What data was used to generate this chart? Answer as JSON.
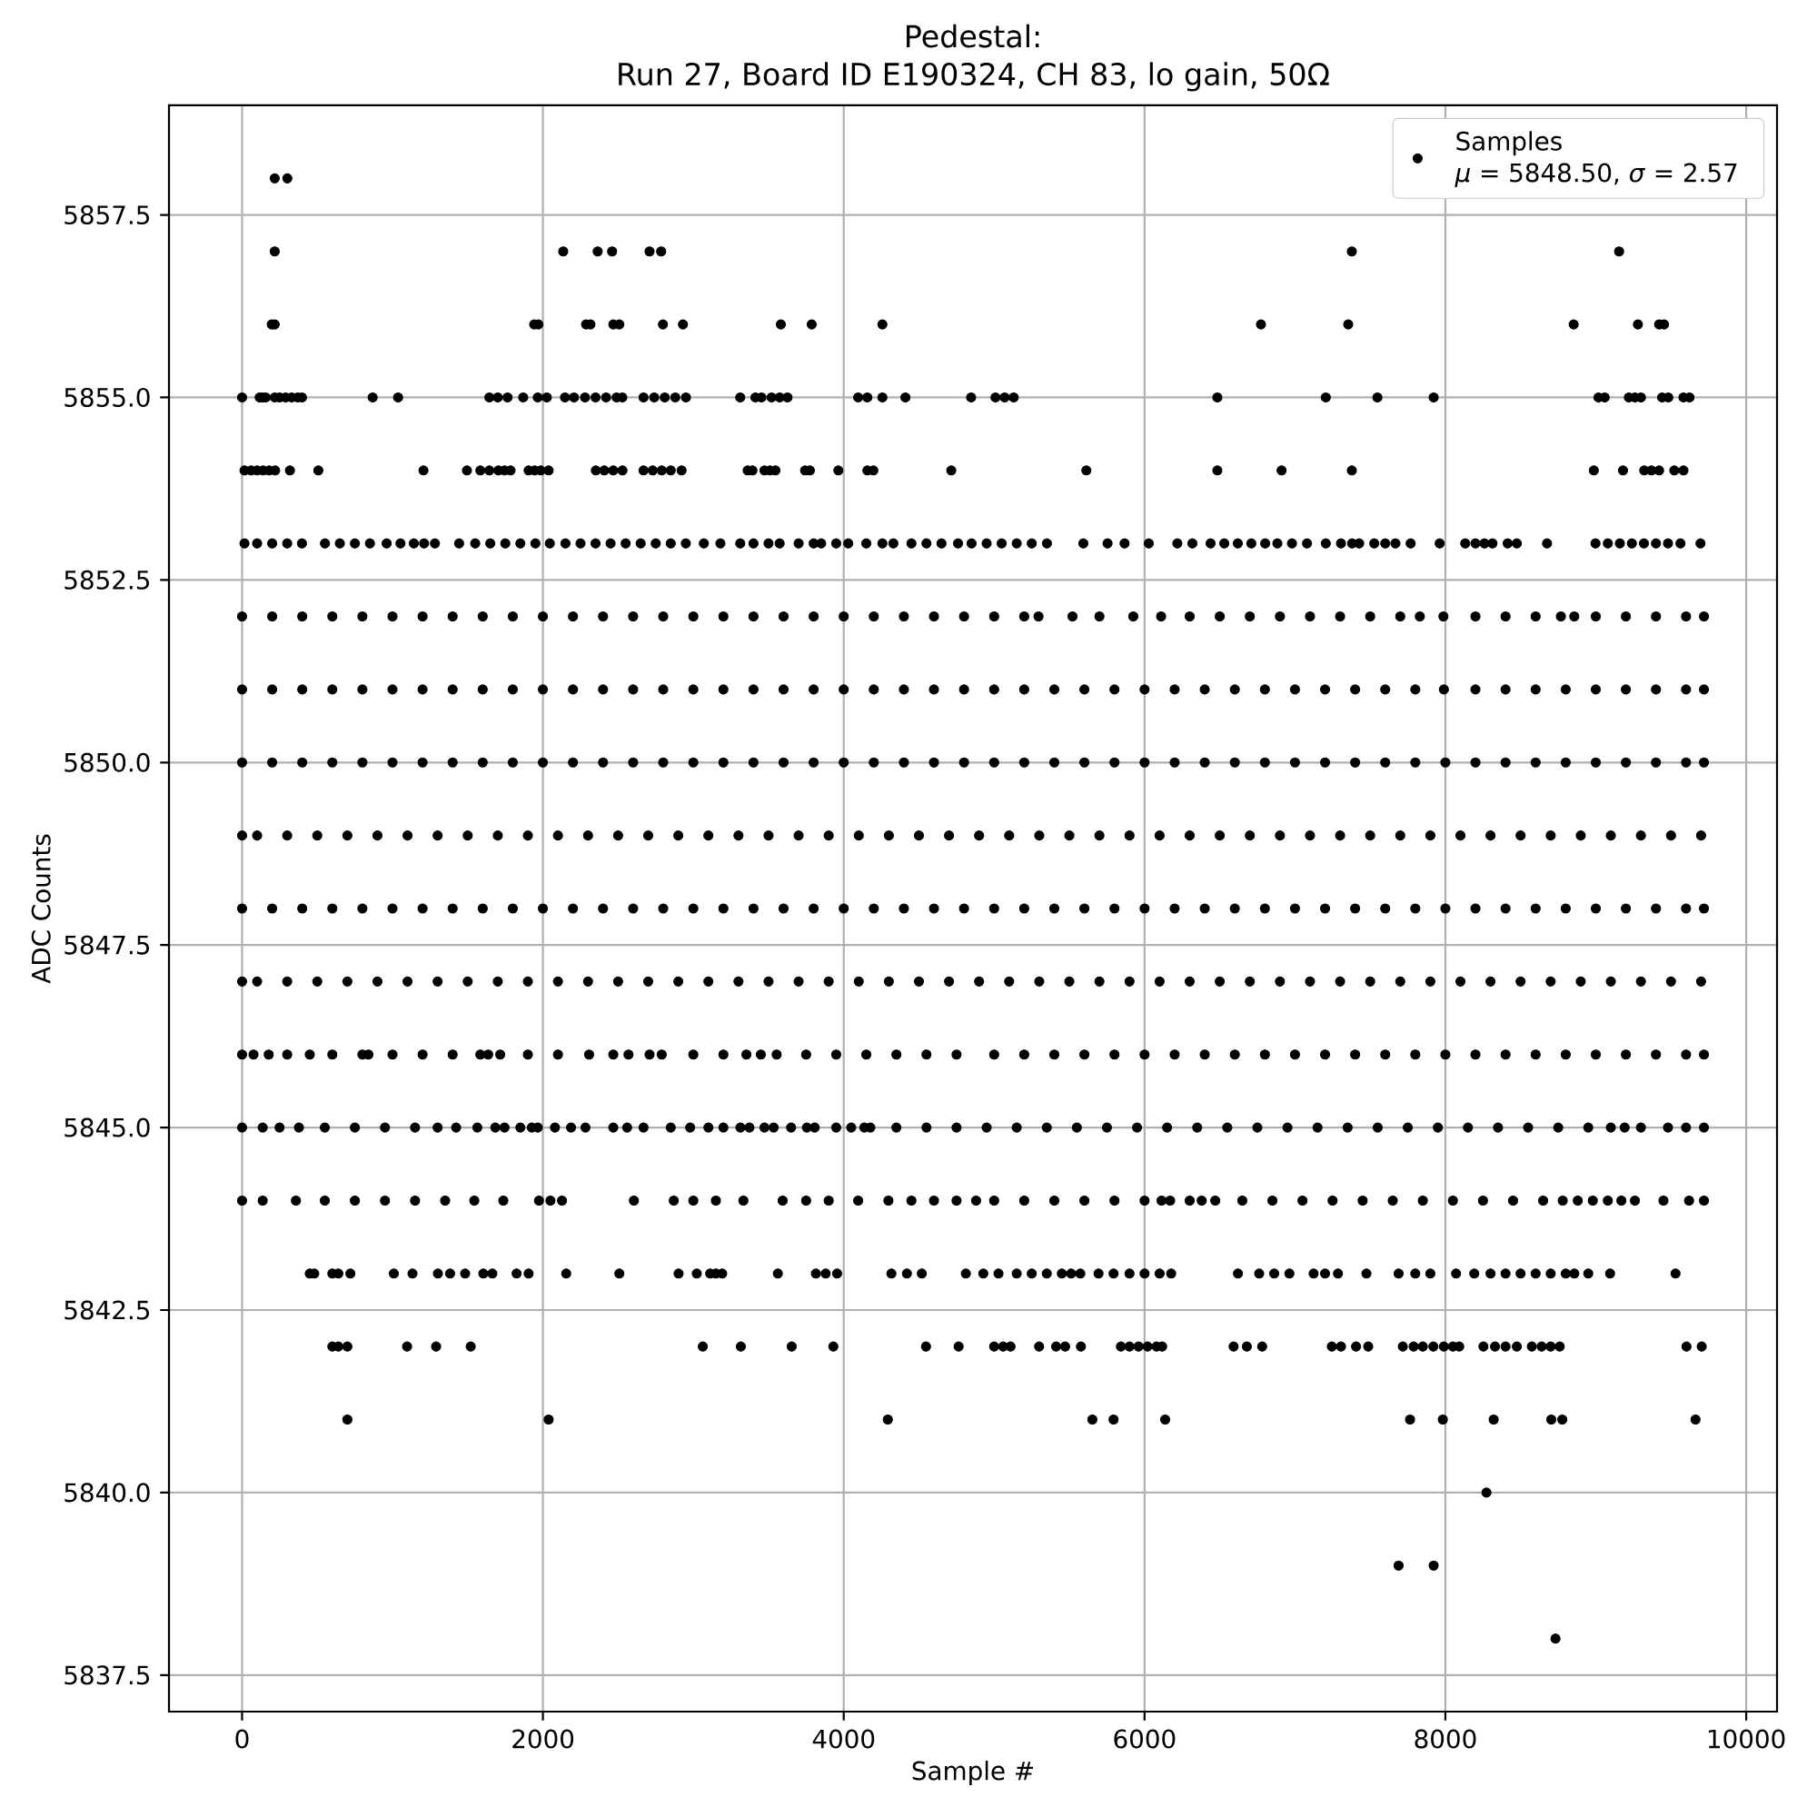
{
  "chart_data": {
    "type": "scatter",
    "title": "Pedestal:\nRun 27, Board ID E190324, CH 83, lo gain, 50Ω",
    "xlabel": "Sample #",
    "ylabel": "ADC Counts",
    "xlim": [
      -486,
      10205
    ],
    "ylim": [
      5837,
      5859
    ],
    "xticks": [
      0,
      2000,
      4000,
      6000,
      8000,
      10000
    ],
    "yticks": [
      5837.5,
      {
        "value": 5840,
        "label": "5840.0"
      },
      5842.5,
      {
        "value": 5845,
        "label": "5845.0"
      },
      5847.5,
      {
        "value": 5850,
        "label": "5850.0"
      },
      5852.5,
      {
        "value": 5855,
        "label": "5855.0"
      },
      5857.5
    ],
    "grid": true,
    "legend": "top right",
    "marker": "circle",
    "x": [
      217,
      301,
      217,
      2135,
      2364,
      2460,
      2709,
      2786,
      7378,
      9155,
      197,
      217,
      1942,
      1970,
      2287,
      2316,
      2468,
      2508,
      2798,
      2931,
      3582,
      3787,
      4257,
      6774,
      7354,
      8853,
      9280,
      9421,
      9454,
      0,
      117,
      137,
      157,
      217,
      250,
      290,
      330,
      370,
      398,
      868,
      1037,
      1644,
      1700,
      1765,
      1869,
      1966,
      2026,
      2147,
      2207,
      2280,
      2350,
      2420,
      2490,
      2528,
      2669,
      2740,
      2810,
      2880,
      2951,
      3312,
      3413,
      3453,
      3520,
      3574,
      3626,
      4096,
      4157,
      4257,
      4410,
      4847,
      5009,
      5070,
      5130,
      6484,
      7205,
      7548,
      7922,
      9018,
      9059,
      9220,
      9260,
      9300,
      9441,
      9482,
      9583,
      9623,
      16,
      60,
      100,
      140,
      180,
      220,
      318,
      507,
      1206,
      1495,
      1584,
      1644,
      1704,
      1745,
      1785,
      1905,
      1945,
      1986,
      2038,
      2352,
      2408,
      2468,
      2529,
      2669,
      2730,
      2790,
      2850,
      2922,
      3361,
      3393,
      3473,
      3510,
      3546,
      3743,
      3775,
      3964,
      4157,
      4197,
      4715,
      5613,
      6484,
      6911,
      7378,
      8987,
      9181,
      9322,
      9370,
      9421,
      9522,
      9583,
      16,
      100,
      200,
      300,
      398,
      551,
      650,
      750,
      850,
      961,
      1053,
      1142,
      1210,
      1282,
      1443,
      1550,
      1650,
      1750,
      1850,
      1950,
      2046,
      2150,
      2250,
      2350,
      2450,
      2550,
      2650,
      2750,
      2850,
      2950,
      3070,
      3180,
      3312,
      3400,
      3500,
      3574,
      3700,
      3800,
      3850,
      3950,
      4030,
      4150,
      4257,
      4330,
      4450,
      4550,
      4650,
      4760,
      4850,
      4950,
      5050,
      5150,
      5250,
      5351,
      5593,
      5754,
      5867,
      6028,
      6218,
      6318,
      6439,
      6530,
      6620,
      6710,
      6802,
      6883,
      6980,
      7080,
      7205,
      7306,
      7380,
      7427,
      7527,
      7600,
      7668,
      7769,
      7962,
      8132,
      8200,
      8260,
      8313,
      8414,
      8475,
      8676,
      8998,
      9080,
      9160,
      9240,
      9320,
      9400,
      9480,
      9563,
      9696,
      0,
      200,
      400,
      600,
      800,
      1000,
      1200,
      1400,
      1600,
      1800,
      2000,
      2200,
      2400,
      2600,
      2800,
      3000,
      3200,
      3400,
      3600,
      3800,
      4000,
      4200,
      4400,
      4600,
      4800,
      5000,
      5200,
      5295,
      5521,
      5700,
      5925,
      6110,
      6300,
      6500,
      6700,
      6900,
      7100,
      7300,
      7500,
      7700,
      7830,
      7987,
      8200,
      8400,
      8600,
      8768,
      8857,
      9000,
      9200,
      9400,
      9600,
      9719,
      0,
      200,
      400,
      600,
      800,
      1000,
      1200,
      1400,
      1600,
      1800,
      2000,
      2200,
      2400,
      2600,
      2800,
      3000,
      3200,
      3400,
      3600,
      3800,
      4000,
      4200,
      4400,
      4600,
      4800,
      5000,
      5200,
      5400,
      5600,
      5800,
      6000,
      6200,
      6400,
      6600,
      6800,
      7000,
      7200,
      7400,
      7600,
      7800,
      7990,
      8200,
      8400,
      8600,
      8800,
      9000,
      9200,
      9400,
      9600,
      9719,
      0,
      200,
      400,
      600,
      800,
      1000,
      1200,
      1400,
      1600,
      1800,
      2000,
      2200,
      2400,
      2600,
      2800,
      3000,
      3200,
      3400,
      3600,
      3800,
      4000,
      4200,
      4400,
      4600,
      4800,
      5000,
      5200,
      5400,
      5600,
      5800,
      6000,
      6200,
      6400,
      6600,
      6800,
      7000,
      7200,
      7400,
      7600,
      7800,
      8000,
      8200,
      8400,
      8600,
      8800,
      9000,
      9200,
      9400,
      9600,
      9719,
      0,
      100,
      300,
      500,
      700,
      900,
      1100,
      1300,
      1500,
      1700,
      1900,
      2100,
      2300,
      2500,
      2700,
      2900,
      3100,
      3300,
      3500,
      3700,
      3900,
      4100,
      4300,
      4500,
      4700,
      4900,
      5100,
      5300,
      5500,
      5700,
      5900,
      6100,
      6300,
      6500,
      6700,
      6900,
      7100,
      7300,
      7500,
      7700,
      7900,
      8100,
      8300,
      8500,
      8700,
      8900,
      9100,
      9300,
      9500,
      9700,
      0,
      200,
      400,
      600,
      800,
      1000,
      1200,
      1400,
      1600,
      1800,
      2000,
      2200,
      2400,
      2600,
      2800,
      3000,
      3200,
      3400,
      3600,
      3800,
      4000,
      4200,
      4400,
      4600,
      4800,
      5000,
      5200,
      5400,
      5600,
      5800,
      6000,
      6200,
      6400,
      6600,
      6800,
      7000,
      7200,
      7400,
      7600,
      7800,
      8000,
      8200,
      8400,
      8600,
      8800,
      9000,
      9200,
      9400,
      9600,
      9719,
      0,
      100,
      300,
      500,
      700,
      900,
      1100,
      1300,
      1500,
      1700,
      1900,
      2100,
      2300,
      2500,
      2700,
      2900,
      3100,
      3300,
      3500,
      3700,
      3900,
      4100,
      4300,
      4500,
      4700,
      4900,
      5100,
      5300,
      5500,
      5700,
      5900,
      6100,
      6300,
      6500,
      6700,
      6900,
      7100,
      7300,
      7500,
      7700,
      7900,
      8100,
      8300,
      8500,
      8700,
      8900,
      9100,
      9300,
      9500,
      9700,
      0,
      76,
      177,
      300,
      450,
      600,
      800,
      840,
      1000,
      1200,
      1400,
      1584,
      1636,
      1716,
      1900,
      2100,
      2307,
      2468,
      2569,
      2709,
      2790,
      3000,
      3200,
      3353,
      3449,
      3554,
      3750,
      3950,
      4150,
      4350,
      4550,
      4750,
      5000,
      5200,
      5400,
      5600,
      5800,
      6000,
      6200,
      6400,
      6600,
      6800,
      7000,
      7200,
      7400,
      7600,
      7800,
      8000,
      8200,
      8400,
      8600,
      8800,
      9000,
      9200,
      9400,
      9600,
      9719,
      0,
      137,
      249,
      378,
      550,
      750,
      950,
      1150,
      1300,
      1423,
      1564,
      1684,
      1745,
      1850,
      1926,
      1966,
      2080,
      2187,
      2283,
      2468,
      2560,
      2669,
      2850,
      2979,
      3100,
      3200,
      3313,
      3373,
      3473,
      3534,
      3650,
      3755,
      3807,
      3950,
      4050,
      4137,
      4177,
      4350,
      4550,
      4750,
      4950,
      5150,
      5350,
      5550,
      5750,
      5950,
      6150,
      6350,
      6550,
      6750,
      6950,
      7150,
      7350,
      7550,
      7750,
      7950,
      8150,
      8350,
      8550,
      8750,
      8950,
      9100,
      9192,
      9300,
      9480,
      9600,
      9719,
      0,
      137,
      358,
      550,
      750,
      950,
      1150,
      1350,
      1544,
      1737,
      1974,
      2050,
      2127,
      2605,
      2870,
      3000,
      3150,
      3333,
      3594,
      3750,
      3900,
      4096,
      4297,
      4450,
      4600,
      4750,
      4880,
      5000,
      5200,
      5400,
      5600,
      5800,
      6000,
      6113,
      6170,
      6300,
      6380,
      6470,
      6650,
      6850,
      7050,
      7250,
      7450,
      7650,
      7850,
      8050,
      8250,
      8450,
      8650,
      8780,
      8880,
      8980,
      9080,
      9170,
      9260,
      9450,
      9620,
      9719,
      450,
      480,
      600,
      640,
      720,
      1009,
      1133,
      1302,
      1383,
      1483,
      1604,
      1664,
      1825,
      1905,
      2155,
      2508,
      2902,
      3023,
      3112,
      3150,
      3192,
      3562,
      3815,
      3880,
      3956,
      4317,
      4420,
      4519,
      4812,
      4928,
      5029,
      5150,
      5250,
      5350,
      5450,
      5512,
      5573,
      5694,
      5794,
      5900,
      6000,
      6100,
      6177,
      6621,
      6762,
      6862,
      6963,
      7124,
      7200,
      7286,
      7475,
      7689,
      7800,
      7900,
      8071,
      8192,
      8300,
      8400,
      8500,
      8600,
      8700,
      8800,
      8857,
      8950,
      9095,
      9530,
      600,
      640,
      700,
      1097,
      1290,
      1520,
      3063,
      3316,
      3654,
      3931,
      4547,
      4764,
      5000,
      5060,
      5109,
      5299,
      5412,
      5472,
      5577,
      5843,
      5900,
      5960,
      6020,
      6080,
      6117,
      6592,
      6680,
      6782,
      7245,
      7306,
      7406,
      7487,
      7717,
      7789,
      7850,
      7920,
      7990,
      8050,
      8092,
      8253,
      8330,
      8400,
      8475,
      8575,
      8640,
      8700,
      8760,
      9603,
      9704,
      700,
      2038,
      4293,
      5653,
      5794,
      6137,
      7765,
      7983,
      8321,
      8704,
      8777,
      9663,
      8273,
      7689,
      7922,
      8732
    ],
    "series": [
      {
        "name": "Samples\n*μ* = 5848.50, *σ* = 2.57",
        "color": "#000000",
        "values": [
          5858,
          5858,
          5857,
          5857,
          5857,
          5857,
          5857,
          5857,
          5857,
          5857,
          5856,
          5856,
          5856,
          5856,
          5856,
          5856,
          5856,
          5856,
          5856,
          5856,
          5856,
          5856,
          5856,
          5856,
          5856,
          5856,
          5856,
          5856,
          5856,
          5855,
          5855,
          5855,
          5855,
          5855,
          5855,
          5855,
          5855,
          5855,
          5855,
          5855,
          5855,
          5855,
          5855,
          5855,
          5855,
          5855,
          5855,
          5855,
          5855,
          5855,
          5855,
          5855,
          5855,
          5855,
          5855,
          5855,
          5855,
          5855,
          5855,
          5855,
          5855,
          5855,
          5855,
          5855,
          5855,
          5855,
          5855,
          5855,
          5855,
          5855,
          5855,
          5855,
          5855,
          5855,
          5855,
          5855,
          5855,
          5855,
          5855,
          5855,
          5855,
          5855,
          5855,
          5855,
          5855,
          5855,
          5854,
          5854,
          5854,
          5854,
          5854,
          5854,
          5854,
          5854,
          5854,
          5854,
          5854,
          5854,
          5854,
          5854,
          5854,
          5854,
          5854,
          5854,
          5854,
          5854,
          5854,
          5854,
          5854,
          5854,
          5854,
          5854,
          5854,
          5854,
          5854,
          5854,
          5854,
          5854,
          5854,
          5854,
          5854,
          5854,
          5854,
          5854,
          5854,
          5854,
          5854,
          5854,
          5854,
          5854,
          5854,
          5854,
          5854,
          5854,
          5854,
          5854,
          5853,
          5853,
          5853,
          5853,
          5853,
          5853,
          5853,
          5853,
          5853,
          5853,
          5853,
          5853,
          5853,
          5853,
          5853,
          5853,
          5853,
          5853,
          5853,
          5853,
          5853,
          5853,
          5853,
          5853,
          5853,
          5853,
          5853,
          5853,
          5853,
          5853,
          5853,
          5853,
          5853,
          5853,
          5853,
          5853,
          5853,
          5853,
          5853,
          5853,
          5853,
          5853,
          5853,
          5853,
          5853,
          5853,
          5853,
          5853,
          5853,
          5853,
          5853,
          5853,
          5853,
          5853,
          5853,
          5853,
          5853,
          5853,
          5853,
          5853,
          5853,
          5853,
          5853,
          5853,
          5853,
          5853,
          5853,
          5853,
          5853,
          5853,
          5853,
          5853,
          5853,
          5853,
          5853,
          5853,
          5853,
          5853,
          5853,
          5853,
          5853,
          5853,
          5853,
          5853,
          5853,
          5853,
          5853,
          5853,
          5853,
          5853,
          5853,
          5853,
          5853,
          5852,
          5852,
          5852,
          5852,
          5852,
          5852,
          5852,
          5852,
          5852,
          5852,
          5852,
          5852,
          5852,
          5852,
          5852,
          5852,
          5852,
          5852,
          5852,
          5852,
          5852,
          5852,
          5852,
          5852,
          5852,
          5852,
          5852,
          5852,
          5852,
          5852,
          5852,
          5852,
          5852,
          5852,
          5852,
          5852,
          5852,
          5852,
          5852,
          5852,
          5852,
          5852,
          5852,
          5852,
          5852,
          5852,
          5852,
          5852,
          5852,
          5852,
          5852,
          5852,
          5851,
          5851,
          5851,
          5851,
          5851,
          5851,
          5851,
          5851,
          5851,
          5851,
          5851,
          5851,
          5851,
          5851,
          5851,
          5851,
          5851,
          5851,
          5851,
          5851,
          5851,
          5851,
          5851,
          5851,
          5851,
          5851,
          5851,
          5851,
          5851,
          5851,
          5851,
          5851,
          5851,
          5851,
          5851,
          5851,
          5851,
          5851,
          5851,
          5851,
          5851,
          5851,
          5851,
          5851,
          5851,
          5851,
          5851,
          5851,
          5851,
          5851,
          5850,
          5850,
          5850,
          5850,
          5850,
          5850,
          5850,
          5850,
          5850,
          5850,
          5850,
          5850,
          5850,
          5850,
          5850,
          5850,
          5850,
          5850,
          5850,
          5850,
          5850,
          5850,
          5850,
          5850,
          5850,
          5850,
          5850,
          5850,
          5850,
          5850,
          5850,
          5850,
          5850,
          5850,
          5850,
          5850,
          5850,
          5850,
          5850,
          5850,
          5850,
          5850,
          5850,
          5850,
          5850,
          5850,
          5850,
          5850,
          5850,
          5850,
          5849,
          5849,
          5849,
          5849,
          5849,
          5849,
          5849,
          5849,
          5849,
          5849,
          5849,
          5849,
          5849,
          5849,
          5849,
          5849,
          5849,
          5849,
          5849,
          5849,
          5849,
          5849,
          5849,
          5849,
          5849,
          5849,
          5849,
          5849,
          5849,
          5849,
          5849,
          5849,
          5849,
          5849,
          5849,
          5849,
          5849,
          5849,
          5849,
          5849,
          5849,
          5849,
          5849,
          5849,
          5849,
          5849,
          5849,
          5849,
          5849,
          5849,
          5848,
          5848,
          5848,
          5848,
          5848,
          5848,
          5848,
          5848,
          5848,
          5848,
          5848,
          5848,
          5848,
          5848,
          5848,
          5848,
          5848,
          5848,
          5848,
          5848,
          5848,
          5848,
          5848,
          5848,
          5848,
          5848,
          5848,
          5848,
          5848,
          5848,
          5848,
          5848,
          5848,
          5848,
          5848,
          5848,
          5848,
          5848,
          5848,
          5848,
          5848,
          5848,
          5848,
          5848,
          5848,
          5848,
          5848,
          5848,
          5848,
          5848,
          5847,
          5847,
          5847,
          5847,
          5847,
          5847,
          5847,
          5847,
          5847,
          5847,
          5847,
          5847,
          5847,
          5847,
          5847,
          5847,
          5847,
          5847,
          5847,
          5847,
          5847,
          5847,
          5847,
          5847,
          5847,
          5847,
          5847,
          5847,
          5847,
          5847,
          5847,
          5847,
          5847,
          5847,
          5847,
          5847,
          5847,
          5847,
          5847,
          5847,
          5847,
          5847,
          5847,
          5847,
          5847,
          5847,
          5847,
          5847,
          5847,
          5847,
          5846,
          5846,
          5846,
          5846,
          5846,
          5846,
          5846,
          5846,
          5846,
          5846,
          5846,
          5846,
          5846,
          5846,
          5846,
          5846,
          5846,
          5846,
          5846,
          5846,
          5846,
          5846,
          5846,
          5846,
          5846,
          5846,
          5846,
          5846,
          5846,
          5846,
          5846,
          5846,
          5846,
          5846,
          5846,
          5846,
          5846,
          5846,
          5846,
          5846,
          5846,
          5846,
          5846,
          5846,
          5846,
          5846,
          5846,
          5846,
          5846,
          5846,
          5846,
          5846,
          5846,
          5846,
          5846,
          5846,
          5846,
          5845,
          5845,
          5845,
          5845,
          5845,
          5845,
          5845,
          5845,
          5845,
          5845,
          5845,
          5845,
          5845,
          5845,
          5845,
          5845,
          5845,
          5845,
          5845,
          5845,
          5845,
          5845,
          5845,
          5845,
          5845,
          5845,
          5845,
          5845,
          5845,
          5845,
          5845,
          5845,
          5845,
          5845,
          5845,
          5845,
          5845,
          5845,
          5845,
          5845,
          5845,
          5845,
          5845,
          5845,
          5845,
          5845,
          5845,
          5845,
          5845,
          5845,
          5845,
          5845,
          5845,
          5845,
          5845,
          5845,
          5845,
          5845,
          5845,
          5845,
          5845,
          5845,
          5845,
          5845,
          5845,
          5845,
          5845,
          5844,
          5844,
          5844,
          5844,
          5844,
          5844,
          5844,
          5844,
          5844,
          5844,
          5844,
          5844,
          5844,
          5844,
          5844,
          5844,
          5844,
          5844,
          5844,
          5844,
          5844,
          5844,
          5844,
          5844,
          5844,
          5844,
          5844,
          5844,
          5844,
          5844,
          5844,
          5844,
          5844,
          5844,
          5844,
          5844,
          5844,
          5844,
          5844,
          5844,
          5844,
          5844,
          5844,
          5844,
          5844,
          5844,
          5844,
          5844,
          5844,
          5844,
          5844,
          5844,
          5844,
          5844,
          5844,
          5844,
          5844,
          5844,
          5843,
          5843,
          5843,
          5843,
          5843,
          5843,
          5843,
          5843,
          5843,
          5843,
          5843,
          5843,
          5843,
          5843,
          5843,
          5843,
          5843,
          5843,
          5843,
          5843,
          5843,
          5843,
          5843,
          5843,
          5843,
          5843,
          5843,
          5843,
          5843,
          5843,
          5843,
          5843,
          5843,
          5843,
          5843,
          5843,
          5843,
          5843,
          5843,
          5843,
          5843,
          5843,
          5843,
          5843,
          5843,
          5843,
          5843,
          5843,
          5843,
          5843,
          5843,
          5843,
          5843,
          5843,
          5843,
          5843,
          5843,
          5843,
          5843,
          5843,
          5843,
          5843,
          5843,
          5843,
          5843,
          5843,
          5842,
          5842,
          5842,
          5842,
          5842,
          5842,
          5842,
          5842,
          5842,
          5842,
          5842,
          5842,
          5842,
          5842,
          5842,
          5842,
          5842,
          5842,
          5842,
          5842,
          5842,
          5842,
          5842,
          5842,
          5842,
          5842,
          5842,
          5842,
          5842,
          5842,
          5842,
          5842,
          5842,
          5842,
          5842,
          5842,
          5842,
          5842,
          5842,
          5842,
          5842,
          5842,
          5842,
          5842,
          5842,
          5842,
          5842,
          5842,
          5842,
          5841,
          5841,
          5841,
          5841,
          5841,
          5841,
          5841,
          5841,
          5841,
          5841,
          5841,
          5841,
          5840,
          5839,
          5839,
          5838
        ]
      }
    ]
  }
}
